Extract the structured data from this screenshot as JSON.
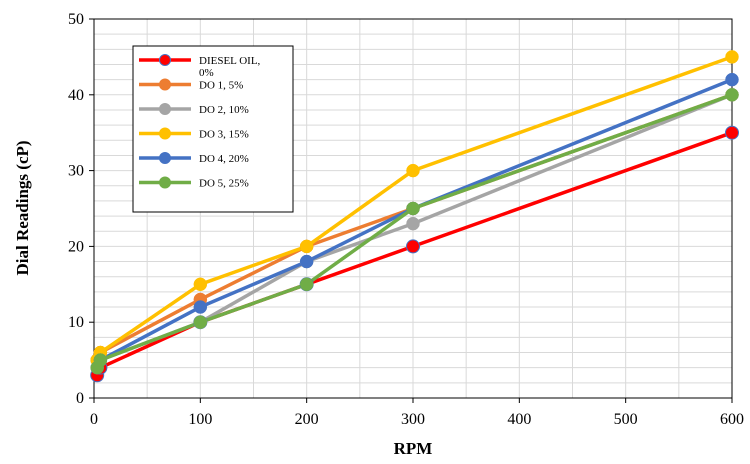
{
  "chart_data": {
    "type": "line",
    "xlabel": "RPM",
    "ylabel": "Dial Readings (cP)",
    "xlim": [
      0,
      600
    ],
    "ylim": [
      0,
      50
    ],
    "xticks": [
      0,
      100,
      200,
      300,
      400,
      500,
      600
    ],
    "yticks": [
      0,
      10,
      20,
      30,
      40,
      50
    ],
    "grid": "vertical and horizontal minor gridlines",
    "legend_position": "upper-left inside",
    "x": [
      3,
      6,
      100,
      200,
      300,
      600
    ],
    "series": [
      {
        "name": "DIESEL OIL, 0%",
        "color": "#ff0000",
        "values": [
          3,
          4,
          10,
          15,
          20,
          35
        ]
      },
      {
        "name": "DO 1, 5%",
        "color": "#ed7d31",
        "values": [
          5,
          6,
          13,
          20,
          25,
          40
        ]
      },
      {
        "name": "DO 2, 10%",
        "color": "#a5a5a5",
        "values": [
          5,
          5,
          10,
          18,
          23,
          40
        ]
      },
      {
        "name": "DO 3, 15%",
        "color": "#ffc000",
        "values": [
          5,
          6,
          15,
          20,
          30,
          45
        ]
      },
      {
        "name": "DO 4, 20%",
        "color": "#4472c4",
        "values": [
          4,
          5,
          12,
          18,
          25,
          42
        ]
      },
      {
        "name": "DO 5, 25%",
        "color": "#70ad47",
        "values": [
          4,
          5,
          10,
          15,
          25,
          40
        ]
      }
    ]
  }
}
